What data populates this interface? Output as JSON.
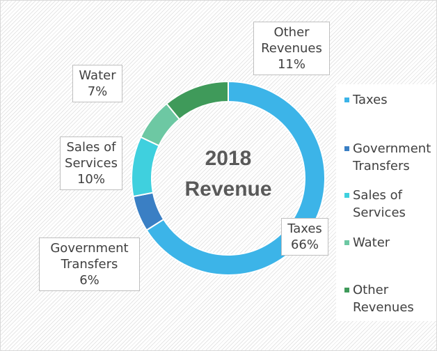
{
  "chart_data": {
    "type": "donut",
    "title": "2018 Revenue",
    "categories": [
      "Taxes",
      "Government Transfers",
      "Sales of Services",
      "Water",
      "Other Revenues"
    ],
    "values": [
      66,
      6,
      10,
      7,
      11
    ],
    "value_labels": [
      "66%",
      "6%",
      "10%",
      "7%",
      "11%"
    ],
    "colors": [
      "#3cb4e8",
      "#3a7fc4",
      "#3fd0de",
      "#6dc8a3",
      "#3f9a5a"
    ],
    "legend": "right"
  }
}
